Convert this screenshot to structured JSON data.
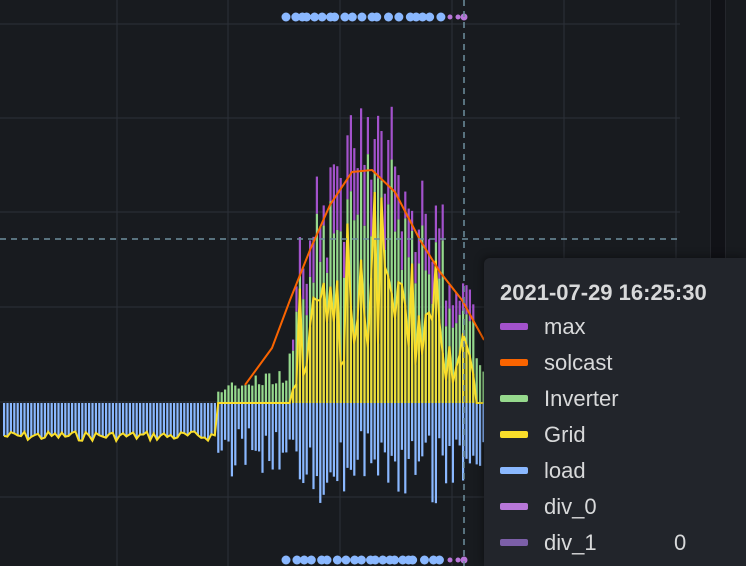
{
  "chart_data": {
    "type": "bar",
    "subtype": "stacked time-series with line overlays",
    "title": "",
    "xlabel": "",
    "ylabel": "",
    "grid": true,
    "legend": "tooltip",
    "cursor_time": "2021-07-29 16:25:30",
    "series": [
      {
        "name": "max",
        "color": "#a352cc",
        "style": "bar"
      },
      {
        "name": "solcast",
        "color": "#fa6400",
        "style": "line"
      },
      {
        "name": "Inverter",
        "color": "#96d98d",
        "style": "bar"
      },
      {
        "name": "Grid",
        "color": "#fade2a",
        "style": "line"
      },
      {
        "name": "load",
        "color": "#8ab8ff",
        "style": "bar"
      },
      {
        "name": "div_0",
        "color": "#b877d9",
        "style": "annotation"
      },
      {
        "name": "div_1",
        "color": "#7c5fa8",
        "style": "annotation"
      }
    ]
  },
  "tooltip": {
    "time": "2021-07-29 16:25:30",
    "rows": [
      {
        "label": "max",
        "color": "#a352cc",
        "value": ""
      },
      {
        "label": "solcast",
        "color": "#fa6400",
        "value": ""
      },
      {
        "label": "Inverter",
        "color": "#96d98d",
        "value": ""
      },
      {
        "label": "Grid",
        "color": "#fade2a",
        "value": ""
      },
      {
        "label": "load",
        "color": "#8ab8ff",
        "value": ""
      },
      {
        "label": "div_0",
        "color": "#b877d9",
        "value": ""
      },
      {
        "label": "div_1",
        "color": "#7c5fa8",
        "value": "0"
      }
    ]
  },
  "colors": {
    "background": "#181b1f",
    "grid": "#2c3038",
    "crosshair": "#6e8f9e",
    "annotation_marker": "#8ab8ff"
  }
}
